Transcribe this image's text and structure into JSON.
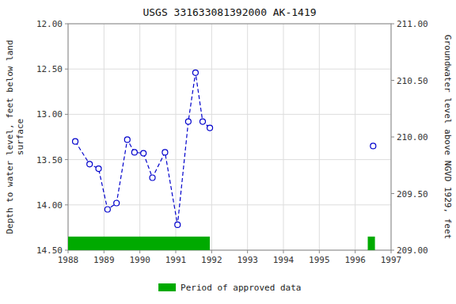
{
  "chart_data": {
    "type": "line",
    "title": "USGS 331633081392000 AK-1419",
    "y_label": "Depth to water level, feet below land\nsurface",
    "y2_label": "Groundwater level above NGVD 1929, feet",
    "xlim": [
      1988,
      1997
    ],
    "xticks": [
      1988,
      1989,
      1990,
      1991,
      1992,
      1993,
      1994,
      1995,
      1996,
      1997
    ],
    "ylim": [
      14.5,
      12.0
    ],
    "yticks": [
      {
        "value": 12.0,
        "label": "12.00"
      },
      {
        "value": 12.5,
        "label": "12.50"
      },
      {
        "value": 13.0,
        "label": "13.00"
      },
      {
        "value": 13.5,
        "label": "13.50"
      },
      {
        "value": 14.0,
        "label": "14.00"
      },
      {
        "value": 14.5,
        "label": "14.50"
      }
    ],
    "y2lim": [
      209.0,
      211.0
    ],
    "y2ticks": [
      {
        "value": 209.0,
        "label": "209.00"
      },
      {
        "value": 209.5,
        "label": "209.50"
      },
      {
        "value": 210.0,
        "label": "210.00"
      },
      {
        "value": 210.5,
        "label": "210.50"
      },
      {
        "value": 211.0,
        "label": "211.00"
      }
    ],
    "grid": true,
    "legend": "bottom",
    "series": [
      {
        "x": [
          1988.2,
          1988.6,
          1988.85,
          1989.1,
          1989.35,
          1989.65,
          1989.85,
          1990.1,
          1990.35,
          1990.7,
          1991.05,
          1991.35,
          1991.55,
          1991.75,
          1991.95
        ],
        "values": [
          13.3,
          13.55,
          13.6,
          14.05,
          13.98,
          13.28,
          13.42,
          13.43,
          13.7,
          13.42,
          14.22,
          13.08,
          12.54,
          13.08,
          13.15
        ],
        "color": "#0000cc",
        "line_style": "dashed",
        "marker": "circle"
      },
      {
        "x": [
          1996.5
        ],
        "values": [
          13.35
        ],
        "color": "#0000cc",
        "line_style": "none",
        "marker": "circle"
      }
    ],
    "approved_periods": {
      "name": "Period of approved data",
      "color": "#00aa00",
      "spans": [
        [
          1988.0,
          1991.95
        ],
        [
          1996.35,
          1996.55
        ]
      ],
      "y_range": [
        14.5,
        14.35
      ]
    }
  }
}
